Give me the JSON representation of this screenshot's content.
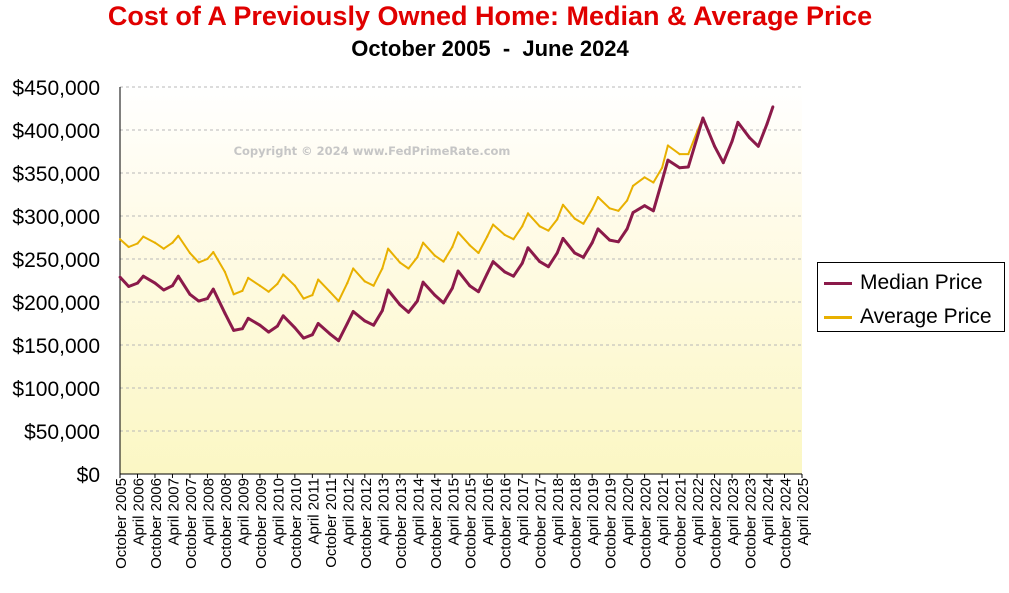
{
  "chart_data": {
    "type": "line",
    "title": "Cost of A Previously Owned Home: Median & Average Price",
    "subtitle": "October 2005  -  June 2024",
    "watermark": "Copyright © 2024 www.FedPrimeRate.com",
    "ylim": [
      0,
      450000
    ],
    "yticks": [
      "$450,000",
      "$400,000",
      "$350,000",
      "$300,000",
      "$250,000",
      "$200,000",
      "$150,000",
      "$100,000",
      "$50,000",
      "$0"
    ],
    "xticks": [
      "October 2005",
      "April 2006",
      "October 2006",
      "April 2007",
      "October 2007",
      "April 2008",
      "October 2008",
      "April 2009",
      "October 2009",
      "April 2010",
      "October 2010",
      "April 2011",
      "October 2011",
      "April 2012",
      "October 2012",
      "April 2013",
      "October 2013",
      "April 2014",
      "October 2014",
      "April 2015",
      "October 2015",
      "April 2016",
      "October 2016",
      "April 2017",
      "October 2017",
      "April 2018",
      "October 2018",
      "April 2019",
      "October 2019",
      "April 2020",
      "October 2020",
      "April 2021",
      "October 2021",
      "April 2022",
      "October 2022",
      "April 2023",
      "October 2023",
      "April 2024",
      "October 2024",
      "April 2025"
    ],
    "grid": true,
    "legend_position": "right",
    "colors": {
      "title": "#e00000",
      "median": "#8b1a4a",
      "average": "#e8b000",
      "gridline": "#b8b8b8"
    },
    "series": [
      {
        "name": "Median Price",
        "x_months_from_october_2005_is_label": false,
        "points": [
          [
            "October 2005",
            229000
          ],
          [
            "January 2006",
            218000
          ],
          [
            "April 2006",
            222000
          ],
          [
            "June 2006",
            230000
          ],
          [
            "October 2006",
            222000
          ],
          [
            "January 2007",
            214000
          ],
          [
            "April 2007",
            219000
          ],
          [
            "June 2007",
            230000
          ],
          [
            "October 2007",
            209000
          ],
          [
            "January 2008",
            201000
          ],
          [
            "April 2008",
            204000
          ],
          [
            "June 2008",
            215000
          ],
          [
            "October 2008",
            187000
          ],
          [
            "January 2009",
            167000
          ],
          [
            "April 2009",
            169000
          ],
          [
            "June 2009",
            181000
          ],
          [
            "October 2009",
            173000
          ],
          [
            "January 2010",
            165000
          ],
          [
            "April 2010",
            172000
          ],
          [
            "June 2010",
            184000
          ],
          [
            "October 2010",
            170000
          ],
          [
            "January 2011",
            158000
          ],
          [
            "April 2011",
            162000
          ],
          [
            "June 2011",
            175000
          ],
          [
            "October 2011",
            163000
          ],
          [
            "January 2012",
            155000
          ],
          [
            "April 2012",
            175000
          ],
          [
            "June 2012",
            189000
          ],
          [
            "October 2012",
            178000
          ],
          [
            "January 2013",
            173000
          ],
          [
            "April 2013",
            190000
          ],
          [
            "June 2013",
            214000
          ],
          [
            "October 2013",
            197000
          ],
          [
            "January 2014",
            188000
          ],
          [
            "April 2014",
            201000
          ],
          [
            "June 2014",
            223000
          ],
          [
            "October 2014",
            208000
          ],
          [
            "January 2015",
            199000
          ],
          [
            "April 2015",
            216000
          ],
          [
            "June 2015",
            236000
          ],
          [
            "October 2015",
            219000
          ],
          [
            "January 2016",
            212000
          ],
          [
            "April 2016",
            233000
          ],
          [
            "June 2016",
            247000
          ],
          [
            "October 2016",
            235000
          ],
          [
            "January 2017",
            230000
          ],
          [
            "April 2017",
            245000
          ],
          [
            "June 2017",
            263000
          ],
          [
            "October 2017",
            247000
          ],
          [
            "January 2018",
            241000
          ],
          [
            "April 2018",
            257000
          ],
          [
            "June 2018",
            274000
          ],
          [
            "October 2018",
            257000
          ],
          [
            "January 2019",
            252000
          ],
          [
            "April 2019",
            269000
          ],
          [
            "June 2019",
            285000
          ],
          [
            "October 2019",
            272000
          ],
          [
            "January 2020",
            270000
          ],
          [
            "April 2020",
            285000
          ],
          [
            "June 2020",
            304000
          ],
          [
            "October 2020",
            312000
          ],
          [
            "January 2021",
            306000
          ],
          [
            "April 2021",
            341000
          ],
          [
            "June 2021",
            365000
          ],
          [
            "October 2021",
            356000
          ],
          [
            "January 2022",
            357000
          ],
          [
            "April 2022",
            391000
          ],
          [
            "June 2022",
            414000
          ],
          [
            "October 2022",
            381000
          ],
          [
            "January 2023",
            362000
          ],
          [
            "April 2023",
            387000
          ],
          [
            "June 2023",
            409000
          ],
          [
            "October 2023",
            391000
          ],
          [
            "January 2024",
            381000
          ],
          [
            "April 2024",
            407000
          ],
          [
            "June 2024",
            427000
          ]
        ]
      },
      {
        "name": "Average Price",
        "points": [
          [
            "October 2005",
            273000
          ],
          [
            "January 2006",
            264000
          ],
          [
            "April 2006",
            268000
          ],
          [
            "June 2006",
            276000
          ],
          [
            "October 2006",
            269000
          ],
          [
            "January 2007",
            262000
          ],
          [
            "April 2007",
            269000
          ],
          [
            "June 2007",
            277000
          ],
          [
            "October 2007",
            257000
          ],
          [
            "January 2008",
            246000
          ],
          [
            "April 2008",
            250000
          ],
          [
            "June 2008",
            258000
          ],
          [
            "October 2008",
            235000
          ],
          [
            "January 2009",
            209000
          ],
          [
            "April 2009",
            213000
          ],
          [
            "June 2009",
            228000
          ],
          [
            "October 2009",
            219000
          ],
          [
            "January 2010",
            212000
          ],
          [
            "April 2010",
            221000
          ],
          [
            "June 2010",
            232000
          ],
          [
            "October 2010",
            219000
          ],
          [
            "January 2011",
            204000
          ],
          [
            "April 2011",
            208000
          ],
          [
            "June 2011",
            226000
          ],
          [
            "October 2011",
            212000
          ],
          [
            "January 2012",
            201000
          ],
          [
            "April 2012",
            222000
          ],
          [
            "June 2012",
            239000
          ],
          [
            "October 2012",
            224000
          ],
          [
            "January 2013",
            219000
          ],
          [
            "April 2013",
            239000
          ],
          [
            "June 2013",
            262000
          ],
          [
            "October 2013",
            246000
          ],
          [
            "January 2014",
            239000
          ],
          [
            "April 2014",
            252000
          ],
          [
            "June 2014",
            269000
          ],
          [
            "October 2014",
            254000
          ],
          [
            "January 2015",
            247000
          ],
          [
            "April 2015",
            264000
          ],
          [
            "June 2015",
            281000
          ],
          [
            "October 2015",
            266000
          ],
          [
            "January 2016",
            257000
          ],
          [
            "April 2016",
            276000
          ],
          [
            "June 2016",
            290000
          ],
          [
            "October 2016",
            278000
          ],
          [
            "January 2017",
            273000
          ],
          [
            "April 2017",
            288000
          ],
          [
            "June 2017",
            303000
          ],
          [
            "October 2017",
            288000
          ],
          [
            "January 2018",
            283000
          ],
          [
            "April 2018",
            296000
          ],
          [
            "June 2018",
            313000
          ],
          [
            "October 2018",
            297000
          ],
          [
            "January 2019",
            291000
          ],
          [
            "April 2019",
            308000
          ],
          [
            "June 2019",
            322000
          ],
          [
            "October 2019",
            309000
          ],
          [
            "January 2020",
            306000
          ],
          [
            "April 2020",
            318000
          ],
          [
            "June 2020",
            335000
          ],
          [
            "October 2020",
            345000
          ],
          [
            "January 2021",
            339000
          ],
          [
            "April 2021",
            356000
          ],
          [
            "June 2021",
            382000
          ],
          [
            "October 2021",
            372000
          ],
          [
            "January 2022",
            372000
          ],
          [
            "April 2022",
            398000
          ],
          [
            "June 2022",
            414000
          ]
        ]
      }
    ]
  }
}
